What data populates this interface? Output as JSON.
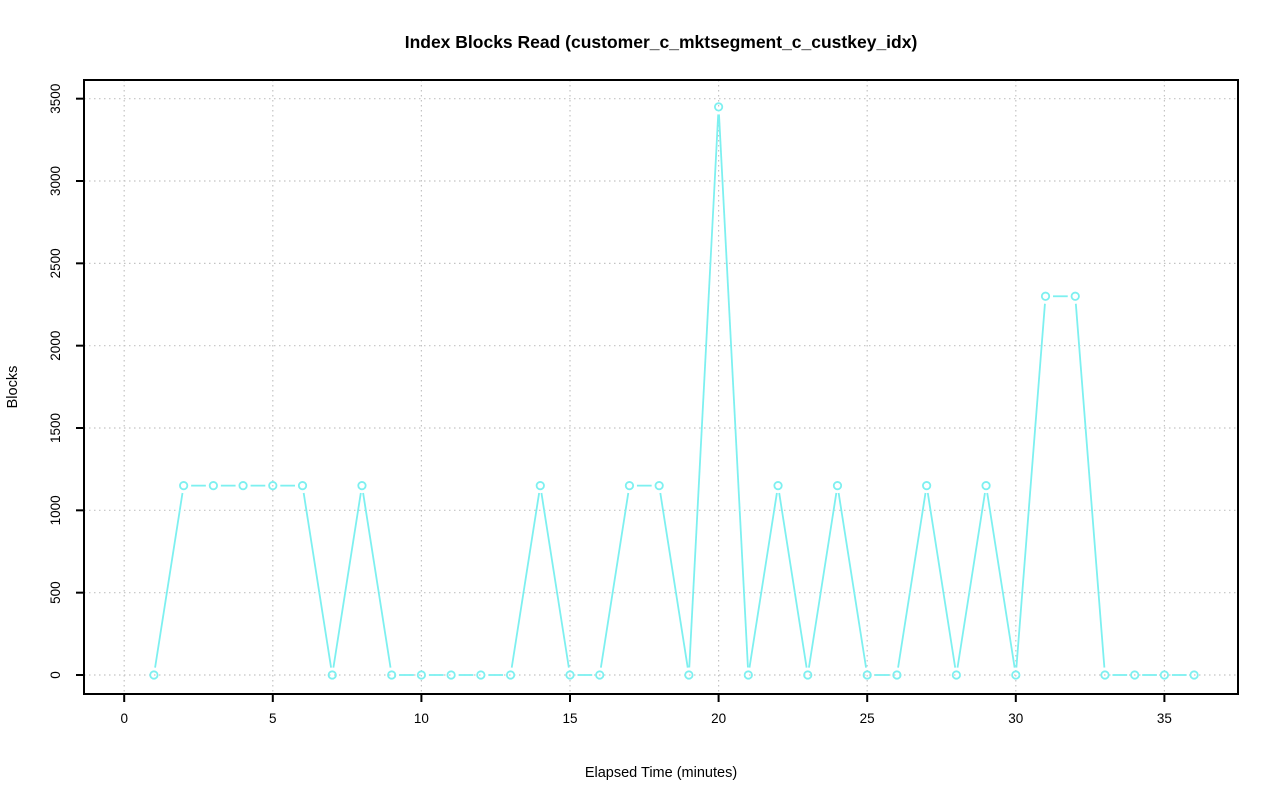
{
  "page": {
    "background_color": "#FFFFFF"
  },
  "chart_data": {
    "type": "line",
    "title": "Index Blocks Read (customer_c_mktsegment_c_custkey_idx)",
    "xlabel": "Elapsed Time (minutes)",
    "ylabel": "Blocks",
    "x": [
      1,
      2,
      3,
      4,
      5,
      6,
      7,
      8,
      9,
      10,
      11,
      12,
      13,
      14,
      15,
      16,
      17,
      18,
      19,
      20,
      21,
      22,
      23,
      24,
      25,
      26,
      27,
      28,
      29,
      30,
      31,
      32,
      33,
      34,
      35,
      36
    ],
    "values": [
      0,
      1150,
      1150,
      1150,
      1150,
      1150,
      0,
      1150,
      0,
      0,
      0,
      0,
      0,
      1150,
      0,
      0,
      1150,
      1150,
      0,
      3450,
      0,
      1150,
      0,
      1150,
      0,
      0,
      1150,
      0,
      1150,
      0,
      2300,
      2300,
      0,
      0,
      0,
      0
    ],
    "series": [
      {
        "name": "Blocks",
        "values": [
          0,
          1150,
          1150,
          1150,
          1150,
          1150,
          0,
          1150,
          0,
          0,
          0,
          0,
          0,
          1150,
          0,
          0,
          1150,
          1150,
          0,
          3450,
          0,
          1150,
          0,
          1150,
          0,
          0,
          1150,
          0,
          1150,
          0,
          2300,
          2300,
          0,
          0,
          0,
          0
        ]
      }
    ],
    "x_ticks": [
      0,
      5,
      10,
      15,
      20,
      25,
      30,
      35
    ],
    "y_ticks": [
      0,
      500,
      1000,
      1500,
      2000,
      2500,
      3000,
      3500
    ],
    "xlim": [
      -0.5,
      37.5
    ],
    "ylim": [
      0,
      3500
    ],
    "grid": true,
    "grid_style": "dotted",
    "legend_position": "none",
    "marker": "open-circle",
    "line_type": "points-and-segments",
    "series_color": "#7DF0F0",
    "grid_color": "#C3C3C3",
    "axis_color": "#000000",
    "text_color": "#000000"
  }
}
